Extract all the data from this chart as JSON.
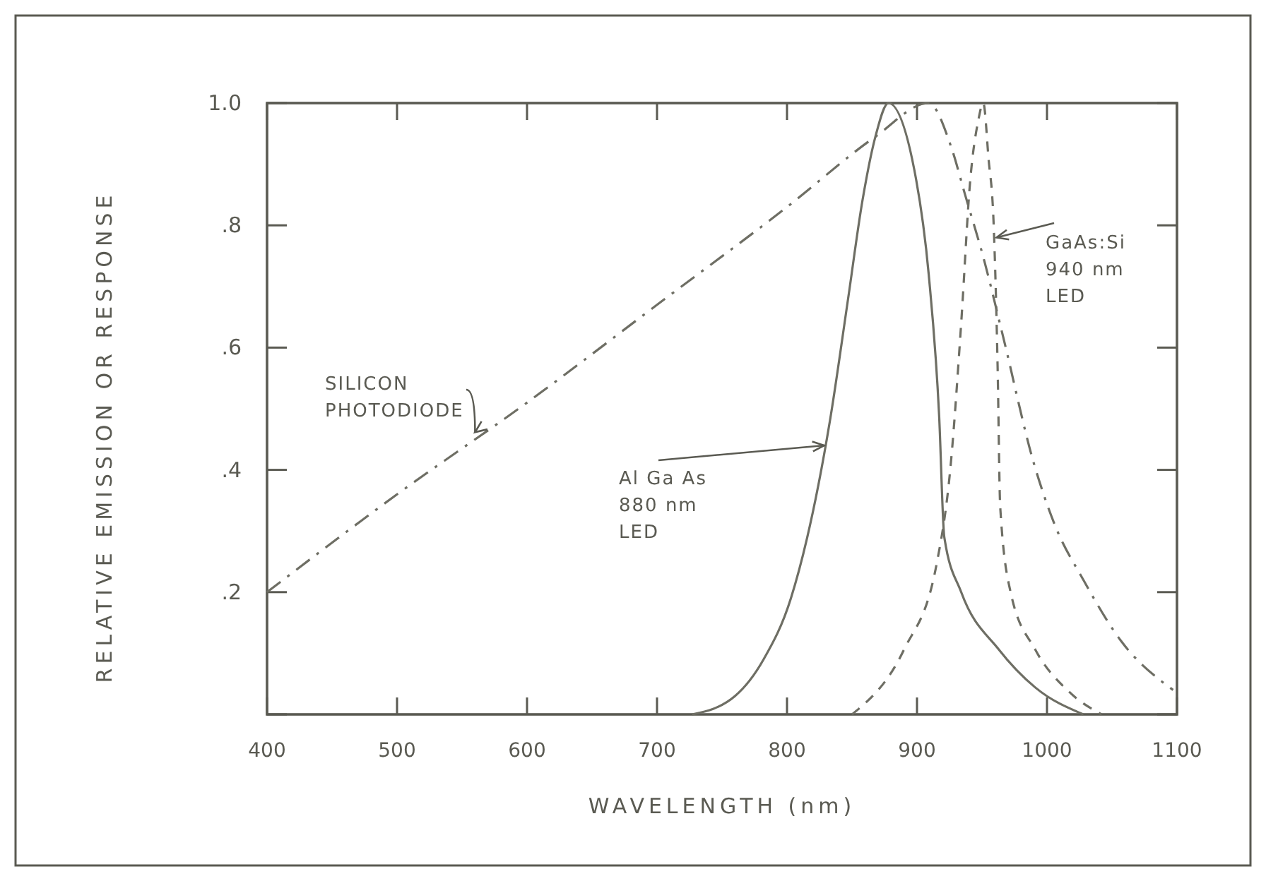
{
  "chart_data": {
    "type": "line",
    "xlabel": "WAVELENGTH (nm)",
    "ylabel": "RELATIVE EMISSION OR RESPONSE",
    "xlim": [
      400,
      1100
    ],
    "xticks": [
      400,
      500,
      600,
      700,
      800,
      900,
      1000,
      1100
    ],
    "ylim": [
      0,
      1
    ],
    "yticks": [
      {
        "value": 0,
        "label": null
      },
      {
        "value": 0.2,
        "label": ".2"
      },
      {
        "value": 0.4,
        "label": ".4"
      },
      {
        "value": 0.6,
        "label": ".6"
      },
      {
        "value": 0.8,
        "label": ".8"
      },
      {
        "value": 1,
        "label": "1.0"
      }
    ],
    "grid": false,
    "legend": false,
    "series": [
      {
        "name": "SILICON PHOTODIODE",
        "color": "#6e6e64",
        "line_style": "dashdot",
        "x": [
          400,
          500,
          600,
          700,
          800,
          868,
          909,
          926,
          937,
          952,
          966,
          990,
          1006,
          1028,
          1057,
          1097
        ],
        "values": [
          0.2,
          0.36,
          0.51,
          0.67,
          0.83,
          0.945,
          1.0,
          0.93,
          0.85,
          0.74,
          0.62,
          0.41,
          0.31,
          0.22,
          0.12,
          0.04
        ]
      },
      {
        "name": "Al Ga As 880 nm LED",
        "color": "#6e6e64",
        "line_style": "solid",
        "x": [
          727,
          760,
          782,
          803,
          833,
          847,
          858,
          868,
          878,
          898,
          909,
          917,
          921,
          934,
          963,
          991,
          1028
        ],
        "values": [
          0,
          0.03,
          0.09,
          0.19,
          0.48,
          0.68,
          0.84,
          0.945,
          1.0,
          0.89,
          0.72,
          0.49,
          0.29,
          0.2,
          0.106,
          0.044,
          0
        ]
      },
      {
        "name": "GaAs:Si 940 nm LED",
        "color": "#6e6e64",
        "line_style": "dashed",
        "x": [
          850,
          890,
          915,
          926,
          934,
          941,
          947,
          951,
          955,
          959,
          962,
          964,
          972,
          991,
          1017,
          1042
        ],
        "values": [
          0,
          0.106,
          0.245,
          0.41,
          0.64,
          0.875,
          0.97,
          1.0,
          0.91,
          0.8,
          0.57,
          0.34,
          0.2,
          0.106,
          0.037,
          0
        ]
      }
    ]
  }
}
